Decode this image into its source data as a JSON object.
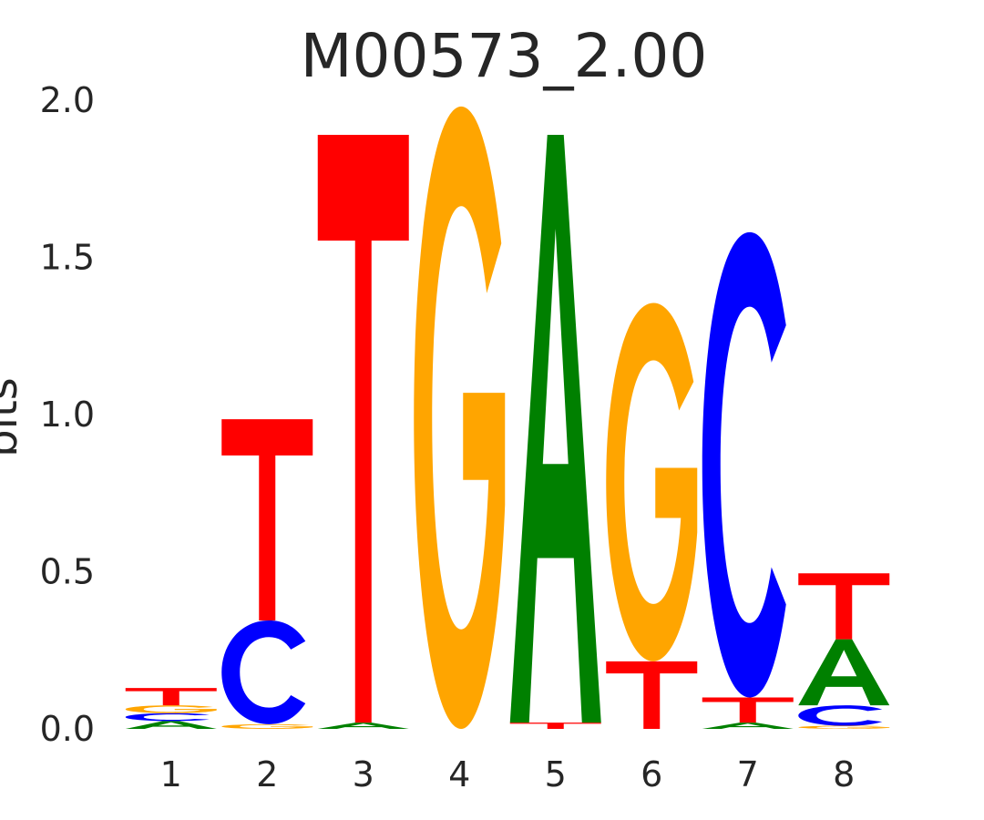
{
  "chart_data": {
    "type": "sequence-logo",
    "title": "M00573_2.00",
    "ylabel": "bits",
    "xlabel": "",
    "ylim": [
      0,
      2
    ],
    "yticks": [
      "0.0",
      "0.5",
      "1.0",
      "1.5",
      "2.0"
    ],
    "grid": false,
    "positions": [
      {
        "label": "1",
        "letters": [
          {
            "base": "A",
            "bits": 0.025
          },
          {
            "base": "C",
            "bits": 0.025
          },
          {
            "base": "G",
            "bits": 0.025
          },
          {
            "base": "T",
            "bits": 0.055
          }
        ]
      },
      {
        "label": "2",
        "letters": [
          {
            "base": "G",
            "bits": 0.015
          },
          {
            "base": "C",
            "bits": 0.33
          },
          {
            "base": "T",
            "bits": 0.64
          }
        ]
      },
      {
        "label": "3",
        "letters": [
          {
            "base": "A",
            "bits": 0.02
          },
          {
            "base": "T",
            "bits": 1.87
          }
        ]
      },
      {
        "label": "4",
        "letters": [
          {
            "base": "G",
            "bits": 1.98
          }
        ]
      },
      {
        "label": "5",
        "letters": [
          {
            "base": "T",
            "bits": 0.02
          },
          {
            "base": "A",
            "bits": 1.87
          }
        ]
      },
      {
        "label": "6",
        "letters": [
          {
            "base": "T",
            "bits": 0.215
          },
          {
            "base": "G",
            "bits": 1.14
          }
        ]
      },
      {
        "label": "7",
        "letters": [
          {
            "base": "A",
            "bits": 0.02
          },
          {
            "base": "T",
            "bits": 0.08
          },
          {
            "base": "C",
            "bits": 1.48
          }
        ]
      },
      {
        "label": "8",
        "letters": [
          {
            "base": "G",
            "bits": 0.01
          },
          {
            "base": "C",
            "bits": 0.065
          },
          {
            "base": "A",
            "bits": 0.21
          },
          {
            "base": "T",
            "bits": 0.21
          }
        ]
      }
    ],
    "colors": {
      "A": "#008000",
      "C": "#0000ff",
      "G": "#ffa500",
      "T": "#ff0000"
    }
  }
}
